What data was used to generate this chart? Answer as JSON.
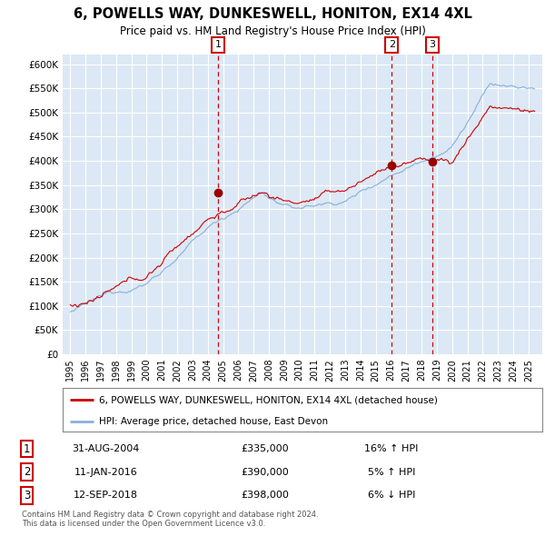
{
  "title": "6, POWELLS WAY, DUNKESWELL, HONITON, EX14 4XL",
  "subtitle": "Price paid vs. HM Land Registry's House Price Index (HPI)",
  "bg_color": "#dce8f5",
  "grid_color": "#ffffff",
  "sale_color": "#cc0000",
  "hpi_color": "#88b0d8",
  "ylim": [
    0,
    620000
  ],
  "yticks": [
    0,
    50000,
    100000,
    150000,
    200000,
    250000,
    300000,
    350000,
    400000,
    450000,
    500000,
    550000,
    600000
  ],
  "ytick_labels": [
    "£0",
    "£50K",
    "£100K",
    "£150K",
    "£200K",
    "£250K",
    "£300K",
    "£350K",
    "£400K",
    "£450K",
    "£500K",
    "£550K",
    "£600K"
  ],
  "sales": [
    {
      "date_num": 2004.67,
      "price": 335000,
      "label": "1"
    },
    {
      "date_num": 2016.04,
      "price": 390000,
      "label": "2"
    },
    {
      "date_num": 2018.71,
      "price": 398000,
      "label": "3"
    }
  ],
  "sale_vlines": [
    2004.67,
    2016.04,
    2018.71
  ],
  "legend_sale_label": "6, POWELLS WAY, DUNKESWELL, HONITON, EX14 4XL (detached house)",
  "legend_hpi_label": "HPI: Average price, detached house, East Devon",
  "table_rows": [
    {
      "num": "1",
      "date": "31-AUG-2004",
      "price": "£335,000",
      "change": "16% ↑ HPI"
    },
    {
      "num": "2",
      "date": "11-JAN-2016",
      "price": "£390,000",
      "change": "5% ↑ HPI"
    },
    {
      "num": "3",
      "date": "12-SEP-2018",
      "price": "£398,000",
      "change": "6% ↓ HPI"
    }
  ],
  "footer": "Contains HM Land Registry data © Crown copyright and database right 2024.\nThis data is licensed under the Open Government Licence v3.0."
}
